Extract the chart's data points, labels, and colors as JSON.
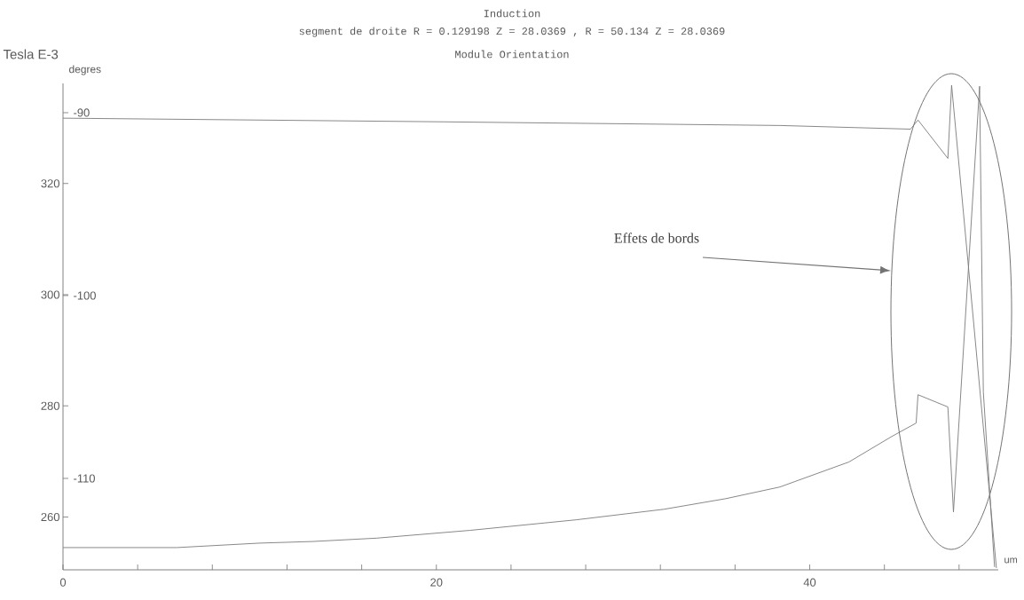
{
  "chart_data": {
    "type": "line",
    "title": "Induction",
    "subtitle": "segment de droite R = 0.129198 Z = 28.0369 , R = 50.134 Z = 28.0369",
    "annotations": [
      "Module  Orientation",
      "Effets de bords"
    ],
    "xlabel": "um",
    "ylabel": "Tesla E-3",
    "y2label": "degres",
    "xlim": [
      0,
      50.1
    ],
    "xticks": [
      0,
      {
        "value": 4,
        "label": null
      },
      {
        "value": 8,
        "label": null
      },
      {
        "value": 12,
        "label": null
      },
      {
        "value": 16,
        "label": null
      },
      20,
      {
        "value": 24,
        "label": null
      },
      {
        "value": 28,
        "label": null
      },
      {
        "value": 32,
        "label": null
      },
      {
        "value": 36,
        "label": null
      },
      40,
      {
        "value": 44,
        "label": null
      },
      {
        "value": 48,
        "label": null
      }
    ],
    "ylim": [
      250.5,
      338
    ],
    "yticks": [
      260,
      280,
      300,
      320
    ],
    "y2lim": [
      -115,
      -88.4
    ],
    "y2ticks": [
      -110,
      -100,
      -90
    ],
    "grid": false,
    "marker": "none",
    "line_style": "solid",
    "series": [
      {
        "color": "#7a7a7a",
        "x": [
          0,
          6.1,
          10.5,
          13.4,
          16.8,
          21.8,
          27.5,
          32.2,
          35.5,
          38.4,
          42.1,
          44.4,
          45.7,
          45.8,
          47.4,
          47.7,
          49.1,
          49.3,
          49.9
        ],
        "values": [
          254.5,
          254.5,
          255.3,
          255.6,
          256.2,
          257.6,
          259.5,
          261.4,
          263.3,
          265.4,
          269.9,
          274.5,
          276.9,
          282.0,
          279.8,
          260.9,
          337.5,
          282.5,
          251
        ]
      },
      {
        "color": "#7a7a7a",
        "axis": "y2",
        "x": [
          0,
          20.4,
          38.4,
          45.4,
          45.8,
          47.4,
          47.6,
          50.0
        ],
        "values": [
          -90.3,
          -90.5,
          -90.7,
          -90.9,
          -90.4,
          -92.5,
          -88.5,
          -114.9
        ]
      }
    ]
  }
}
